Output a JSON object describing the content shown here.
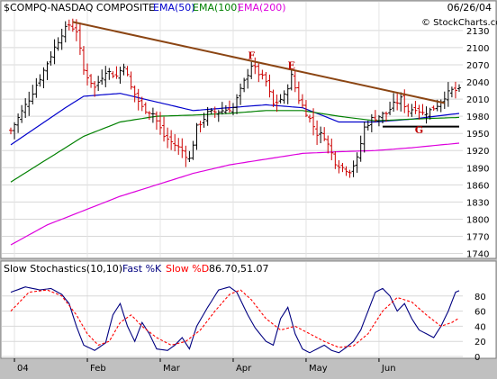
{
  "header": {
    "symbol": "$COMPQ-NASDAQ COMPOSITE",
    "legend": [
      {
        "text": "EMA(50)",
        "color": "#0000cc"
      },
      {
        "text": "EMA(100)",
        "color": "#008000"
      },
      {
        "text": "EMA(200)",
        "color": "#dd00dd"
      }
    ],
    "date": "06/26/04",
    "watermark": "© StockCharts.com"
  },
  "colors": {
    "up": "#000000",
    "down": "#cc0000",
    "trend": "#8b4513",
    "support": "#000000",
    "ema50": "#0000cc",
    "ema100": "#008000",
    "ema200": "#dd00dd",
    "pctK": "#000080",
    "pctD": "#ff0000",
    "plot_bg": "#ffffff",
    "page_bg": "#c0c0c0"
  },
  "chart_data": [
    {
      "type": "ohlc",
      "title": "$COMPQ-NASDAQ COMPOSITE",
      "ylim": [
        1733,
        2155
      ],
      "y_ticks": [
        1740,
        1770,
        1800,
        1830,
        1860,
        1890,
        1920,
        1950,
        1980,
        2010,
        2040,
        2070,
        2100,
        2130
      ],
      "x_ticks": [
        "04",
        "Feb",
        "Mar",
        "Apr",
        "May",
        "Jun"
      ],
      "x_tick_positions": [
        1,
        21,
        41,
        61,
        81,
        101
      ],
      "n_bars": 124,
      "price_anchors": [
        [
          0,
          1955
        ],
        [
          5,
          2010
        ],
        [
          9,
          2060
        ],
        [
          12,
          2100
        ],
        [
          14,
          2125
        ],
        [
          16,
          2140
        ],
        [
          18,
          2130
        ],
        [
          20,
          2060
        ],
        [
          23,
          2030
        ],
        [
          26,
          2060
        ],
        [
          29,
          2050
        ],
        [
          31,
          2070
        ],
        [
          33,
          2030
        ],
        [
          36,
          1995
        ],
        [
          39,
          1985
        ],
        [
          42,
          1945
        ],
        [
          45,
          1930
        ],
        [
          47,
          1920
        ],
        [
          49,
          1905
        ],
        [
          51,
          1960
        ],
        [
          54,
          1985
        ],
        [
          58,
          1990
        ],
        [
          61,
          1995
        ],
        [
          64,
          2040
        ],
        [
          66,
          2070
        ],
        [
          68,
          2055
        ],
        [
          70,
          2040
        ],
        [
          72,
          2000
        ],
        [
          75,
          2015
        ],
        [
          77,
          2050
        ],
        [
          79,
          2010
        ],
        [
          82,
          1975
        ],
        [
          84,
          1950
        ],
        [
          86,
          1945
        ],
        [
          89,
          1900
        ],
        [
          91,
          1890
        ],
        [
          93,
          1885
        ],
        [
          95,
          1905
        ],
        [
          97,
          1960
        ],
        [
          99,
          1975
        ],
        [
          101,
          1980
        ],
        [
          103,
          1985
        ],
        [
          105,
          2000
        ],
        [
          107,
          2010
        ],
        [
          109,
          1990
        ],
        [
          111,
          1995
        ],
        [
          113,
          1985
        ],
        [
          115,
          1990
        ],
        [
          117,
          2000
        ],
        [
          119,
          2015
        ],
        [
          121,
          2025
        ],
        [
          123,
          2025
        ]
      ],
      "series": [
        {
          "name": "EMA(50)",
          "points": [
            [
              0,
              1930
            ],
            [
              15,
              1995
            ],
            [
              20,
              2015
            ],
            [
              30,
              2020
            ],
            [
              40,
              2005
            ],
            [
              50,
              1990
            ],
            [
              60,
              1995
            ],
            [
              70,
              2000
            ],
            [
              80,
              1995
            ],
            [
              90,
              1970
            ],
            [
              100,
              1970
            ],
            [
              110,
              1975
            ],
            [
              123,
              1985
            ]
          ]
        },
        {
          "name": "EMA(100)",
          "points": [
            [
              0,
              1865
            ],
            [
              10,
              1905
            ],
            [
              20,
              1945
            ],
            [
              30,
              1970
            ],
            [
              40,
              1980
            ],
            [
              50,
              1982
            ],
            [
              60,
              1985
            ],
            [
              70,
              1990
            ],
            [
              80,
              1990
            ],
            [
              90,
              1980
            ],
            [
              100,
              1972
            ],
            [
              110,
              1975
            ],
            [
              123,
              1978
            ]
          ]
        },
        {
          "name": "EMA(200)",
          "points": [
            [
              0,
              1755
            ],
            [
              10,
              1790
            ],
            [
              20,
              1815
            ],
            [
              30,
              1840
            ],
            [
              40,
              1860
            ],
            [
              50,
              1880
            ],
            [
              60,
              1895
            ],
            [
              70,
              1905
            ],
            [
              80,
              1915
            ],
            [
              90,
              1918
            ],
            [
              100,
              1920
            ],
            [
              110,
              1925
            ],
            [
              123,
              1933
            ]
          ]
        }
      ],
      "trendline": [
        [
          17,
          2145
        ],
        [
          119,
          2003
        ]
      ],
      "support_line": [
        [
          102,
          1962
        ],
        [
          123,
          1962
        ]
      ],
      "annotations": [
        {
          "text": "F",
          "x": 66,
          "y": 2080
        },
        {
          "text": "E",
          "x": 77,
          "y": 2063
        },
        {
          "text": "G",
          "x": 112,
          "y": 1950
        }
      ]
    },
    {
      "type": "line",
      "title": "Slow Stochastics(10,10)",
      "legend": [
        {
          "text": "Fast %K",
          "color": "#000080"
        },
        {
          "text": "Slow %D",
          "color": "#ff0000"
        },
        {
          "text": "86.70,51.07",
          "color": "#000000"
        }
      ],
      "ylim": [
        0,
        100
      ],
      "y_ticks": [
        0,
        20,
        40,
        60,
        80
      ],
      "series": [
        {
          "name": "Fast %K",
          "points": [
            [
              0,
              85
            ],
            [
              4,
              92
            ],
            [
              8,
              88
            ],
            [
              11,
              90
            ],
            [
              14,
              82
            ],
            [
              16,
              70
            ],
            [
              18,
              40
            ],
            [
              20,
              15
            ],
            [
              23,
              8
            ],
            [
              26,
              18
            ],
            [
              28,
              55
            ],
            [
              30,
              70
            ],
            [
              32,
              40
            ],
            [
              34,
              20
            ],
            [
              36,
              45
            ],
            [
              38,
              30
            ],
            [
              40,
              10
            ],
            [
              43,
              8
            ],
            [
              45,
              15
            ],
            [
              47,
              25
            ],
            [
              49,
              10
            ],
            [
              51,
              40
            ],
            [
              54,
              65
            ],
            [
              57,
              88
            ],
            [
              60,
              92
            ],
            [
              62,
              85
            ],
            [
              65,
              55
            ],
            [
              67,
              38
            ],
            [
              70,
              20
            ],
            [
              72,
              15
            ],
            [
              74,
              50
            ],
            [
              76,
              65
            ],
            [
              78,
              30
            ],
            [
              80,
              10
            ],
            [
              82,
              5
            ],
            [
              84,
              10
            ],
            [
              86,
              15
            ],
            [
              88,
              8
            ],
            [
              90,
              5
            ],
            [
              92,
              12
            ],
            [
              94,
              20
            ],
            [
              96,
              35
            ],
            [
              98,
              60
            ],
            [
              100,
              85
            ],
            [
              102,
              90
            ],
            [
              104,
              80
            ],
            [
              106,
              60
            ],
            [
              108,
              70
            ],
            [
              110,
              50
            ],
            [
              112,
              35
            ],
            [
              114,
              30
            ],
            [
              116,
              25
            ],
            [
              118,
              40
            ],
            [
              120,
              60
            ],
            [
              122,
              85
            ],
            [
              123,
              87
            ]
          ]
        },
        {
          "name": "Slow %D",
          "points": [
            [
              0,
              60
            ],
            [
              5,
              85
            ],
            [
              10,
              88
            ],
            [
              14,
              80
            ],
            [
              18,
              55
            ],
            [
              21,
              30
            ],
            [
              24,
              15
            ],
            [
              27,
              20
            ],
            [
              30,
              45
            ],
            [
              33,
              55
            ],
            [
              36,
              40
            ],
            [
              40,
              25
            ],
            [
              44,
              15
            ],
            [
              48,
              20
            ],
            [
              52,
              35
            ],
            [
              56,
              60
            ],
            [
              60,
              82
            ],
            [
              63,
              88
            ],
            [
              66,
              75
            ],
            [
              70,
              50
            ],
            [
              74,
              35
            ],
            [
              78,
              40
            ],
            [
              82,
              30
            ],
            [
              86,
              20
            ],
            [
              90,
              12
            ],
            [
              94,
              14
            ],
            [
              98,
              30
            ],
            [
              102,
              60
            ],
            [
              106,
              78
            ],
            [
              110,
              72
            ],
            [
              114,
              55
            ],
            [
              118,
              40
            ],
            [
              121,
              45
            ],
            [
              123,
              51
            ]
          ]
        }
      ]
    }
  ]
}
